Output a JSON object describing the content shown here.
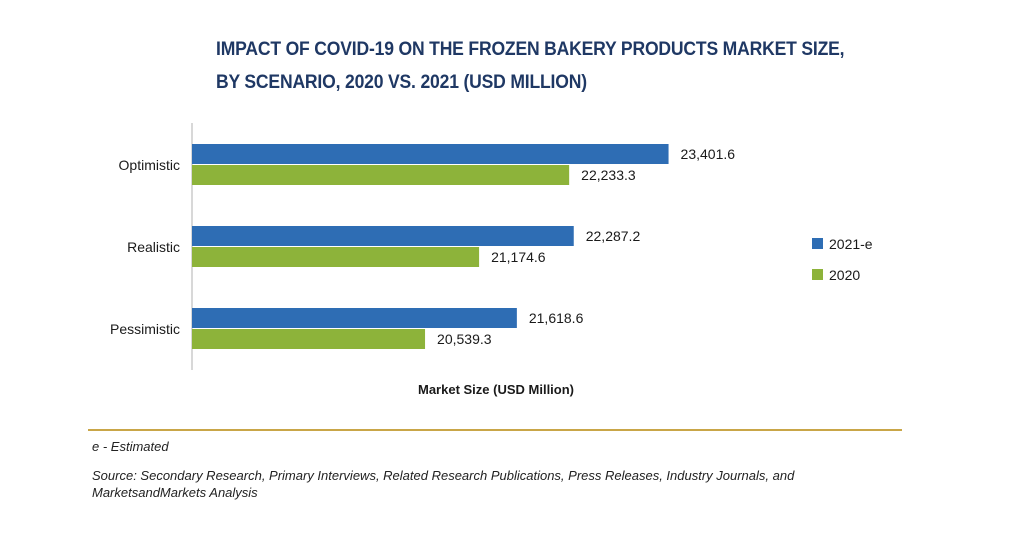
{
  "chart_data": {
    "type": "bar",
    "orientation": "horizontal",
    "title_lines": [
      "IMPACT OF COVID-19 ON THE FROZEN BAKERY PRODUCTS MARKET SIZE,",
      "BY SCENARIO, 2020 VS. 2021 (USD MILLION)"
    ],
    "xlabel": "Market Size (USD Million)",
    "ylabel": "",
    "categories": [
      "Optimistic",
      "Realistic",
      "Pessimistic"
    ],
    "series": [
      {
        "name": "2021-e",
        "color": "#2e6db4",
        "values": [
          23401.6,
          22287.2,
          21618.6
        ],
        "labels": [
          "23,401.6",
          "22,287.2",
          "21,618.6"
        ]
      },
      {
        "name": "2020",
        "color": "#8db33a",
        "values": [
          22233.3,
          21174.6,
          20539.3
        ],
        "labels": [
          "22,233.3",
          "21,174.6",
          "20,539.3"
        ]
      }
    ],
    "xlim": [
      17800,
      24500
    ],
    "grid": false,
    "legend_position": "right"
  },
  "footnote": "e - Estimated",
  "source": "Source: Secondary Research, Primary Interviews, Related Research Publications, Press Releases, Industry Journals, and MarketsandMarkets Analysis"
}
